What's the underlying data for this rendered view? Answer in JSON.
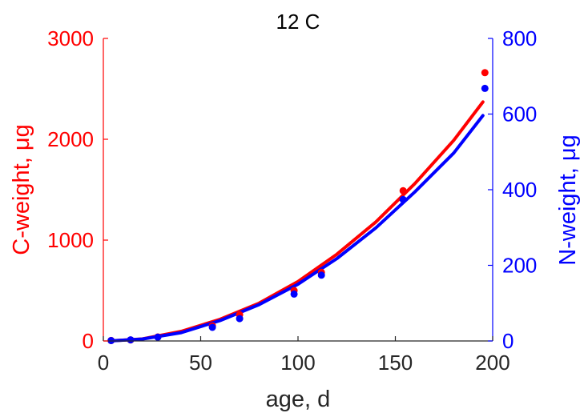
{
  "chart_data": {
    "type": "line",
    "title": "12 C",
    "xlabel": "age, d",
    "ylabel_left": "C-weight, μg",
    "ylabel_right": "N-weight, μg",
    "xlim": [
      0,
      200
    ],
    "ylim_left": [
      0,
      3000
    ],
    "ylim_right": [
      0,
      800
    ],
    "xticks": [
      "0",
      "50",
      "100",
      "150",
      "200"
    ],
    "yticks_left": [
      "0",
      "1000",
      "2000",
      "3000"
    ],
    "yticks_right": [
      "0",
      "200",
      "400",
      "600",
      "800"
    ],
    "grid": false,
    "colors": {
      "carbon": "#ff0000",
      "nitrogen": "#0000ff",
      "axes": "#262626"
    },
    "series": [
      {
        "axis": "left",
        "color": "#ff0000",
        "points": [
          {
            "x": 4,
            "y": 5
          },
          {
            "x": 14,
            "y": 10
          },
          {
            "x": 28,
            "y": 40
          },
          {
            "x": 56,
            "y": 150
          },
          {
            "x": 70,
            "y": 260
          },
          {
            "x": 98,
            "y": 500
          },
          {
            "x": 112,
            "y": 680
          },
          {
            "x": 154,
            "y": 1490
          },
          {
            "x": 196,
            "y": 2660
          }
        ],
        "fit": [
          {
            "x": 3,
            "y": 0
          },
          {
            "x": 20,
            "y": 20
          },
          {
            "x": 40,
            "y": 95
          },
          {
            "x": 60,
            "y": 215
          },
          {
            "x": 80,
            "y": 375
          },
          {
            "x": 100,
            "y": 590
          },
          {
            "x": 120,
            "y": 860
          },
          {
            "x": 140,
            "y": 1180
          },
          {
            "x": 160,
            "y": 1560
          },
          {
            "x": 180,
            "y": 1990
          },
          {
            "x": 195,
            "y": 2370
          }
        ]
      },
      {
        "axis": "right",
        "color": "#0000ff",
        "points": [
          {
            "x": 4,
            "y": 1
          },
          {
            "x": 14,
            "y": 3
          },
          {
            "x": 28,
            "y": 10
          },
          {
            "x": 56,
            "y": 36
          },
          {
            "x": 70,
            "y": 59
          },
          {
            "x": 98,
            "y": 124
          },
          {
            "x": 112,
            "y": 174
          },
          {
            "x": 154,
            "y": 374
          },
          {
            "x": 196,
            "y": 668
          }
        ],
        "fit": [
          {
            "x": 3,
            "y": 0
          },
          {
            "x": 20,
            "y": 5
          },
          {
            "x": 40,
            "y": 22
          },
          {
            "x": 60,
            "y": 54
          },
          {
            "x": 80,
            "y": 96
          },
          {
            "x": 100,
            "y": 150
          },
          {
            "x": 120,
            "y": 218
          },
          {
            "x": 140,
            "y": 299
          },
          {
            "x": 160,
            "y": 394
          },
          {
            "x": 180,
            "y": 497
          },
          {
            "x": 195,
            "y": 596
          }
        ]
      }
    ]
  }
}
